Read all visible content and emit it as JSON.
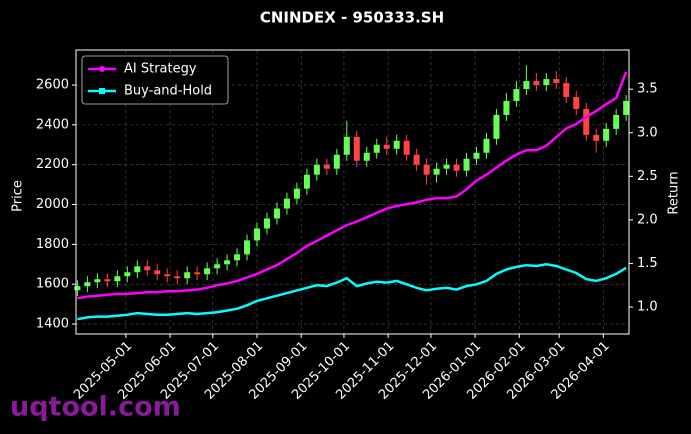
{
  "chart_data": {
    "type": "candlestick",
    "title": "CNINDEX - 950333.SH",
    "ylabel": "Price",
    "y2label": "Return",
    "watermark": "uqtool.com",
    "x": [
      "2025-03-28",
      "2025-04-04",
      "2025-04-11",
      "2025-04-18",
      "2025-04-25",
      "2025-05-02",
      "2025-05-09",
      "2025-05-16",
      "2025-05-23",
      "2025-05-30",
      "2025-06-06",
      "2025-06-13",
      "2025-06-20",
      "2025-06-27",
      "2025-07-04",
      "2025-07-11",
      "2025-07-18",
      "2025-07-25",
      "2025-08-01",
      "2025-08-08",
      "2025-08-15",
      "2025-08-22",
      "2025-08-29",
      "2025-09-05",
      "2025-09-12",
      "2025-09-19",
      "2025-09-26",
      "2025-10-03",
      "2025-10-10",
      "2025-10-17",
      "2025-10-24",
      "2025-10-31",
      "2025-11-07",
      "2025-11-14",
      "2025-11-21",
      "2025-11-28",
      "2025-12-05",
      "2025-12-12",
      "2025-12-19",
      "2025-12-26",
      "2026-01-02",
      "2026-01-09",
      "2026-01-16",
      "2026-01-23",
      "2026-01-30",
      "2026-02-06",
      "2026-02-13",
      "2026-02-20",
      "2026-02-27",
      "2026-03-06",
      "2026-03-13",
      "2026-03-20",
      "2026-03-27",
      "2026-04-03",
      "2026-04-10",
      "2026-04-17"
    ],
    "candles": {
      "up_color": "#66ff55",
      "down_color": "#ff4444",
      "open": [
        1570,
        1590,
        1610,
        1625,
        1615,
        1640,
        1660,
        1690,
        1670,
        1650,
        1640,
        1630,
        1660,
        1650,
        1680,
        1700,
        1720,
        1750,
        1820,
        1880,
        1930,
        1980,
        2030,
        2080,
        2150,
        2200,
        2180,
        2250,
        2340,
        2220,
        2260,
        2300,
        2280,
        2320,
        2250,
        2200,
        2150,
        2180,
        2200,
        2170,
        2230,
        2260,
        2330,
        2450,
        2520,
        2580,
        2620,
        2600,
        2630,
        2610,
        2540,
        2480,
        2350,
        2320,
        2380,
        2450
      ],
      "high": [
        1620,
        1640,
        1655,
        1655,
        1670,
        1690,
        1720,
        1720,
        1700,
        1680,
        1670,
        1690,
        1690,
        1710,
        1730,
        1750,
        1780,
        1850,
        1910,
        1960,
        2010,
        2060,
        2110,
        2180,
        2230,
        2230,
        2280,
        2420,
        2370,
        2290,
        2330,
        2340,
        2350,
        2350,
        2280,
        2230,
        2210,
        2230,
        2230,
        2260,
        2290,
        2360,
        2480,
        2560,
        2620,
        2700,
        2660,
        2660,
        2670,
        2640,
        2570,
        2510,
        2380,
        2410,
        2480,
        2550
      ],
      "low": [
        1540,
        1560,
        1580,
        1585,
        1585,
        1610,
        1630,
        1640,
        1620,
        1610,
        1600,
        1600,
        1620,
        1620,
        1650,
        1670,
        1690,
        1720,
        1790,
        1850,
        1900,
        1950,
        2000,
        2050,
        2120,
        2150,
        2150,
        2220,
        2190,
        2190,
        2230,
        2250,
        2250,
        2220,
        2170,
        2100,
        2110,
        2150,
        2140,
        2140,
        2200,
        2230,
        2300,
        2420,
        2490,
        2550,
        2570,
        2570,
        2580,
        2510,
        2450,
        2320,
        2260,
        2290,
        2350,
        2420
      ],
      "close": [
        1590,
        1610,
        1625,
        1615,
        1640,
        1660,
        1690,
        1670,
        1650,
        1640,
        1630,
        1660,
        1650,
        1680,
        1700,
        1720,
        1750,
        1820,
        1880,
        1930,
        1980,
        2030,
        2080,
        2150,
        2200,
        2180,
        2250,
        2340,
        2220,
        2260,
        2300,
        2280,
        2320,
        2250,
        2200,
        2150,
        2180,
        2200,
        2170,
        2230,
        2260,
        2330,
        2450,
        2520,
        2580,
        2620,
        2600,
        2630,
        2610,
        2540,
        2480,
        2350,
        2320,
        2380,
        2450,
        2520
      ]
    },
    "series": [
      {
        "name": "AI Strategy",
        "color": "#ff00ff",
        "axis": "y2",
        "values": [
          1.1,
          1.12,
          1.13,
          1.14,
          1.15,
          1.15,
          1.16,
          1.17,
          1.17,
          1.18,
          1.18,
          1.19,
          1.2,
          1.22,
          1.25,
          1.27,
          1.3,
          1.34,
          1.38,
          1.43,
          1.48,
          1.55,
          1.62,
          1.7,
          1.76,
          1.82,
          1.88,
          1.94,
          1.98,
          2.03,
          2.08,
          2.13,
          2.16,
          2.18,
          2.2,
          2.23,
          2.25,
          2.25,
          2.27,
          2.35,
          2.45,
          2.52,
          2.6,
          2.68,
          2.75,
          2.8,
          2.8,
          2.85,
          2.95,
          3.05,
          3.1,
          3.18,
          3.25,
          3.33,
          3.4,
          3.7
        ]
      },
      {
        "name": "Buy-and-Hold",
        "color": "#00ffff",
        "axis": "y2",
        "values": [
          0.86,
          0.88,
          0.89,
          0.89,
          0.9,
          0.91,
          0.93,
          0.92,
          0.91,
          0.91,
          0.92,
          0.93,
          0.92,
          0.93,
          0.94,
          0.96,
          0.98,
          1.02,
          1.07,
          1.1,
          1.13,
          1.16,
          1.19,
          1.22,
          1.25,
          1.24,
          1.28,
          1.33,
          1.24,
          1.27,
          1.29,
          1.28,
          1.3,
          1.26,
          1.22,
          1.19,
          1.21,
          1.22,
          1.2,
          1.24,
          1.26,
          1.3,
          1.38,
          1.43,
          1.46,
          1.48,
          1.47,
          1.49,
          1.47,
          1.43,
          1.39,
          1.32,
          1.3,
          1.33,
          1.38,
          1.45
        ]
      }
    ],
    "xlim": [
      "2025-03-27",
      "2026-04-19"
    ],
    "xticks": [
      "2025-05-01",
      "2025-06-01",
      "2025-07-01",
      "2025-08-01",
      "2025-09-01",
      "2025-10-01",
      "2025-11-01",
      "2025-12-01",
      "2026-01-01",
      "2026-02-01",
      "2026-03-01",
      "2026-04-01"
    ],
    "ylim": [
      1350,
      2776
    ],
    "yticks": [
      1400,
      1600,
      1800,
      2000,
      2200,
      2400,
      2600
    ],
    "y2lim": [
      0.69,
      3.95
    ],
    "y2ticks": [
      {
        "value": 1,
        "label": "1.0"
      },
      1.5,
      {
        "value": 2,
        "label": "2.0"
      },
      2.5,
      {
        "value": 3,
        "label": "3.0"
      },
      3.5
    ],
    "grid": true,
    "legend": "upper-left"
  }
}
